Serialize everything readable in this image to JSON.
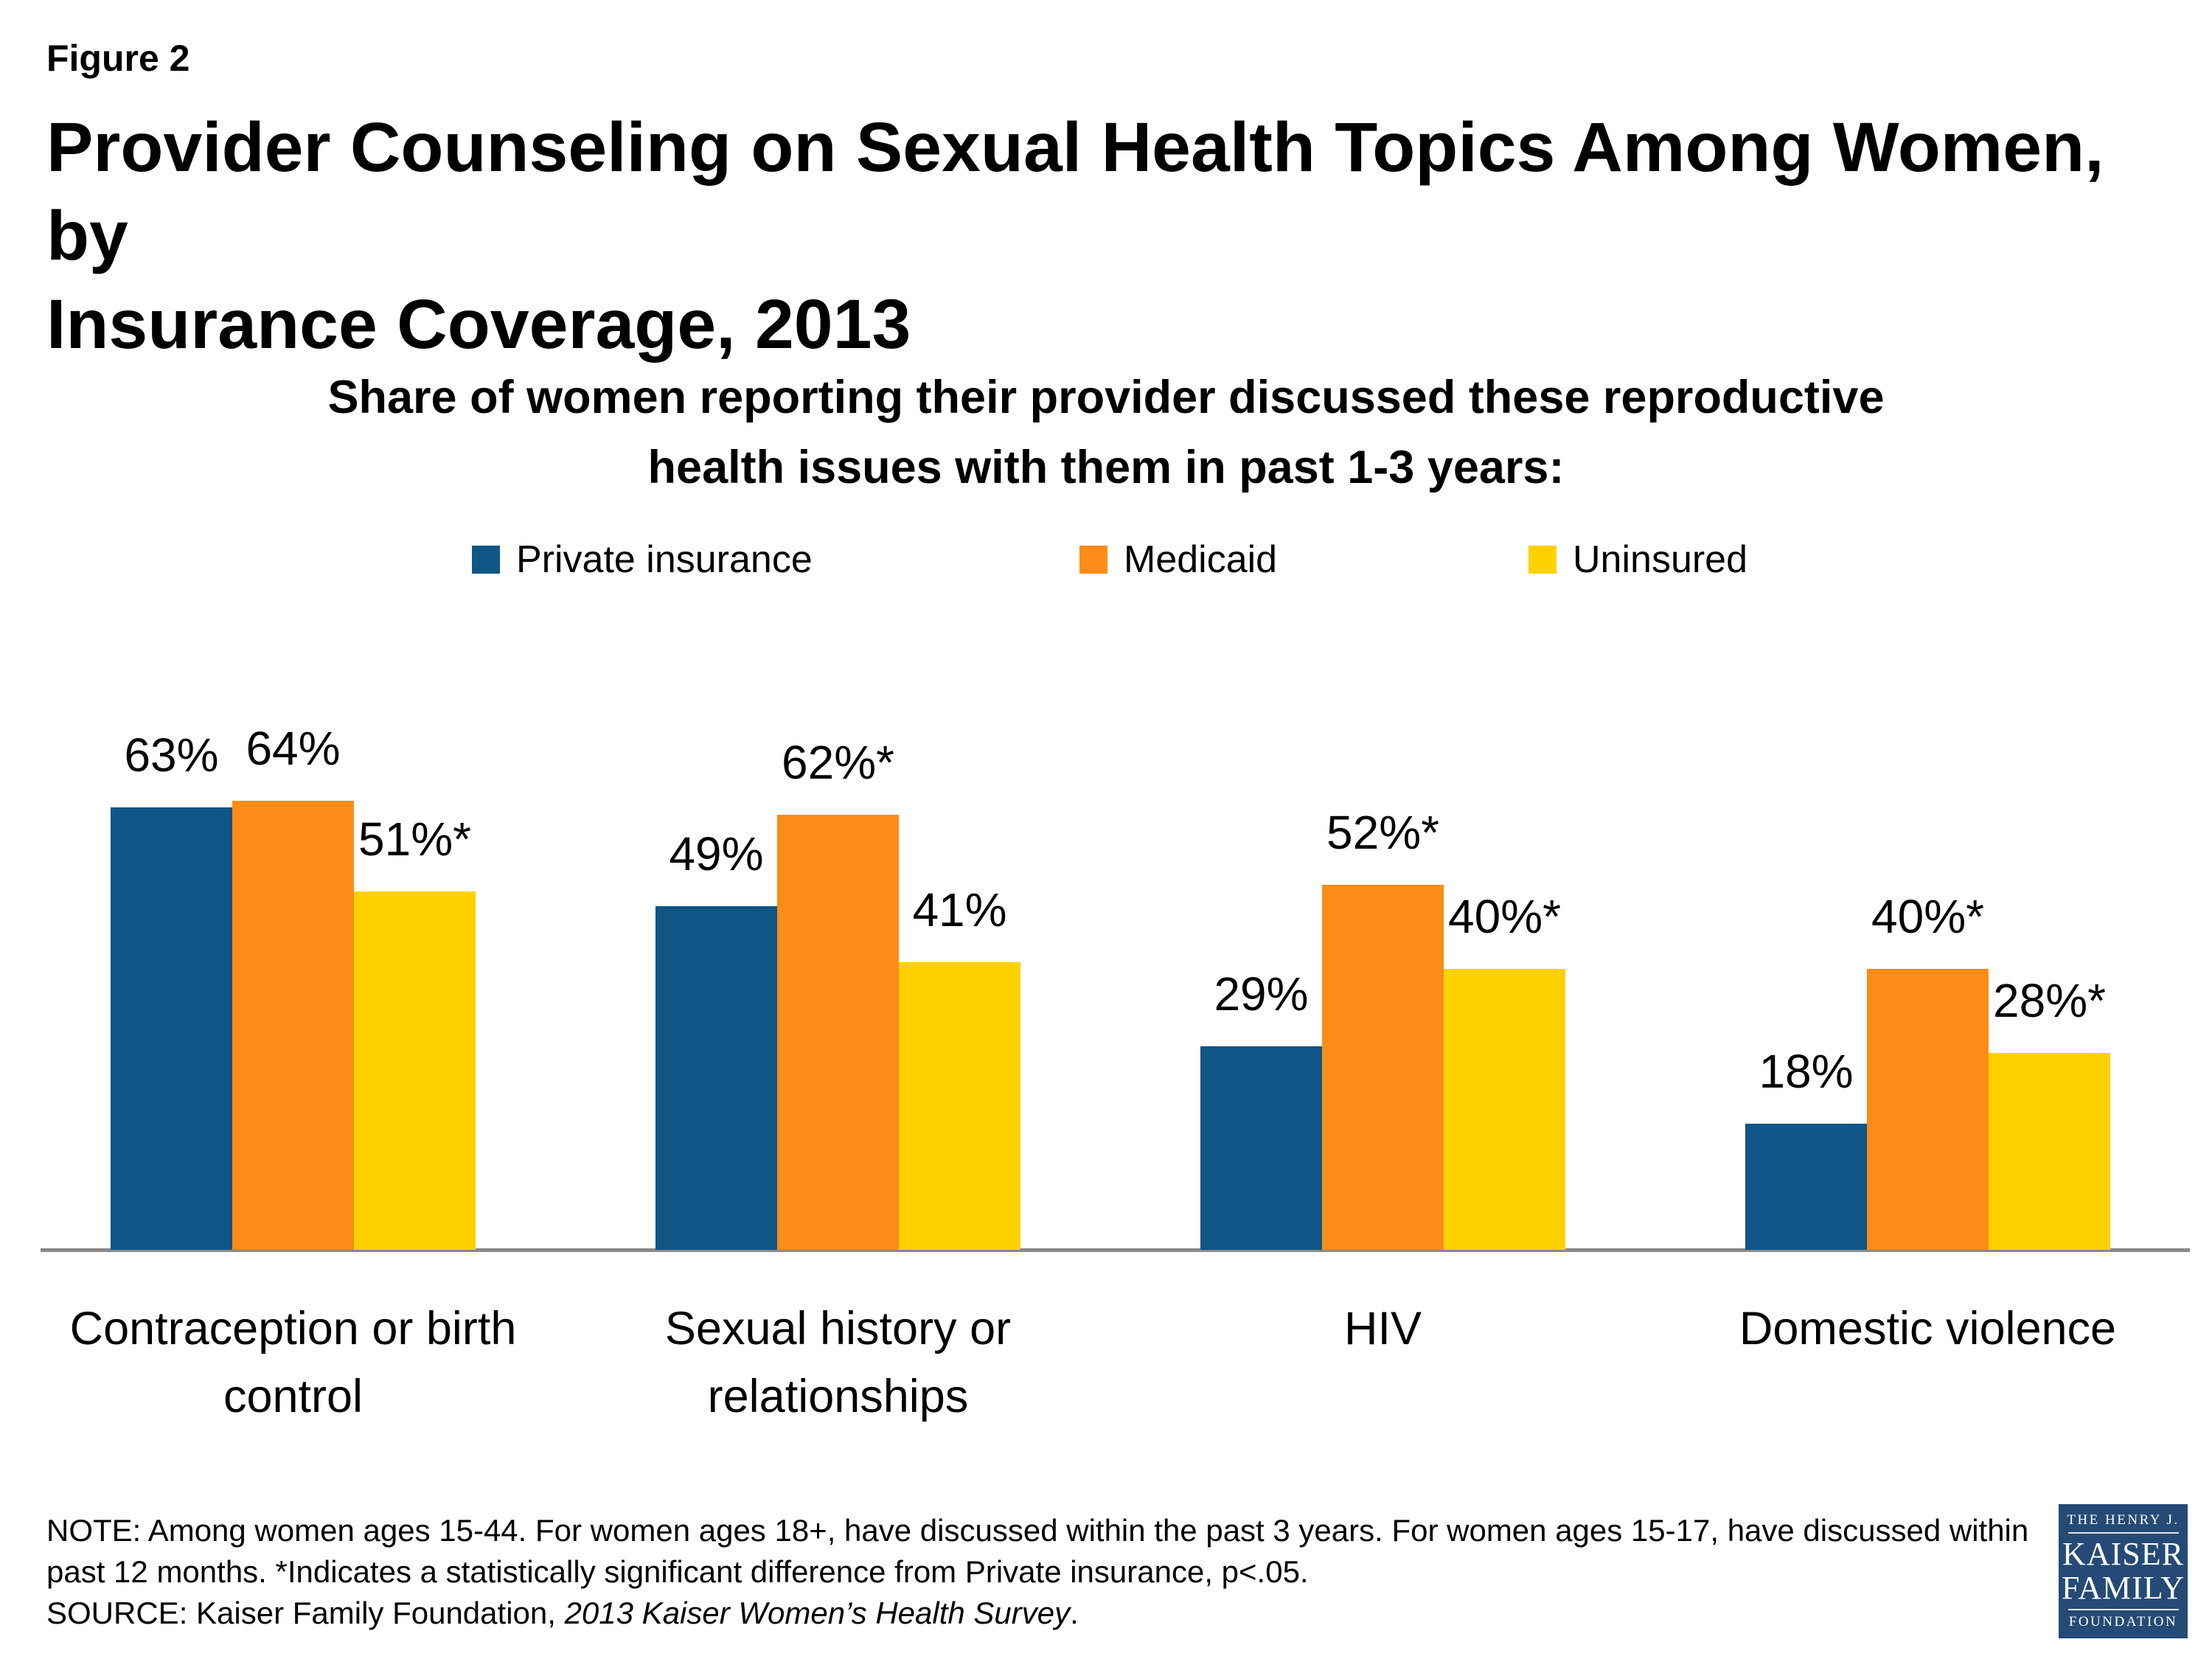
{
  "figure_label": "Figure 2",
  "title": {
    "line1": "Provider Counseling on Sexual Health Topics Among Women, by",
    "line2": "Insurance Coverage, 2013"
  },
  "subtitle": {
    "line1": "Share of women reporting their provider discussed these reproductive",
    "line2": "health issues with them in past 1-3 years:"
  },
  "legend": [
    {
      "label": "Private insurance",
      "color": "#0F5585"
    },
    {
      "label": "Medicaid",
      "color": "#FB8C17"
    },
    {
      "label": "Uninsured",
      "color": "#FFD100"
    }
  ],
  "chart_data": {
    "type": "bar",
    "categories": [
      "Contraception or birth control",
      "Sexual history or relationships",
      "HIV",
      "Domestic violence"
    ],
    "categories_lines": [
      [
        "Contraception or birth",
        "control"
      ],
      [
        "Sexual history or",
        "relationships"
      ],
      [
        "HIV"
      ],
      [
        "Domestic violence"
      ]
    ],
    "series": [
      {
        "name": "Private insurance",
        "color": "#0F5585",
        "values": [
          63,
          49,
          29,
          18
        ],
        "labels": [
          "63%",
          "49%",
          "29%",
          "18%"
        ]
      },
      {
        "name": "Medicaid",
        "color": "#FB8C17",
        "values": [
          64,
          62,
          52,
          40
        ],
        "labels": [
          "64%",
          "62%*",
          "52%*",
          "40%*"
        ]
      },
      {
        "name": "Uninsured",
        "color": "#FFD100",
        "values": [
          51,
          41,
          40,
          28
        ],
        "labels": [
          "51%*",
          "41%",
          "40%*",
          "28%*"
        ]
      }
    ],
    "ylim": [
      0,
      100
    ],
    "grid": false,
    "legend_position": "top",
    "axis_color": "#898989",
    "annotation": "* indicates statistically significant difference from Private insurance"
  },
  "notes": {
    "line1": "NOTE: Among women ages 15-44. For women ages 18+, have discussed within the past 3 years. For women ages 15-17, have discussed within",
    "line2": "past 12 months. *Indicates a statistically significant difference from Private insurance, p<.05.",
    "source_prefix": "SOURCE: Kaiser Family Foundation, ",
    "source_italic": "2013 Kaiser Women’s Health Survey",
    "source_suffix": "."
  },
  "logo": {
    "top": "THE HENRY J.",
    "name1": "KAISER",
    "name2": "FAMILY",
    "bottom": "FOUNDATION",
    "bg": "#254A75"
  }
}
